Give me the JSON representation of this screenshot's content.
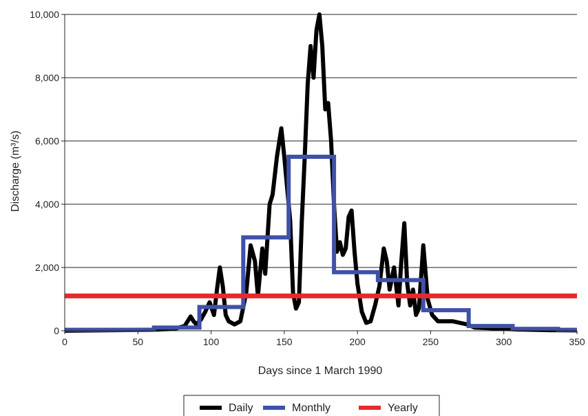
{
  "chart_data": {
    "type": "line",
    "title": "",
    "xlabel": "Days since 1 March 1990",
    "ylabel": "Discharge (m³/s)",
    "xlim": [
      0,
      350
    ],
    "ylim": [
      0,
      10000
    ],
    "x_ticks": [
      0,
      50,
      100,
      150,
      200,
      250,
      300,
      350
    ],
    "x_tick_labels": [
      "0",
      "50",
      "100",
      "150",
      "200",
      "250",
      "300",
      "350"
    ],
    "y_ticks": [
      0,
      2000,
      4000,
      6000,
      8000,
      10000
    ],
    "y_tick_labels": [
      "0",
      "2,000",
      "4,000",
      "6,000",
      "8,000",
      "10,000"
    ],
    "grid": "horizontal",
    "legend_position": "bottom",
    "series": [
      {
        "name": "Daily",
        "color": "#000000",
        "step": false,
        "x": [
          0,
          60,
          75,
          82,
          86,
          88,
          90,
          93,
          96,
          99,
          102,
          104,
          106,
          108,
          110,
          112,
          116,
          120,
          124,
          127,
          130,
          132,
          135,
          137,
          140,
          142,
          145,
          148,
          150,
          152,
          154,
          156,
          158,
          160,
          162,
          164,
          166,
          168,
          170,
          172,
          174,
          176,
          178,
          180,
          182,
          184,
          186,
          188,
          190,
          192,
          194,
          196,
          198,
          200,
          203,
          206,
          209,
          212,
          215,
          218,
          220,
          222,
          225,
          228,
          230,
          232,
          234,
          236,
          238,
          240,
          242,
          245,
          248,
          251,
          255,
          260,
          265,
          270,
          275,
          280,
          290,
          300,
          310,
          330,
          350
        ],
        "y": [
          0,
          30,
          60,
          150,
          450,
          300,
          200,
          350,
          600,
          900,
          500,
          1300,
          2000,
          1400,
          500,
          300,
          200,
          300,
          1200,
          2700,
          2200,
          1100,
          2600,
          1800,
          4000,
          4300,
          5500,
          6400,
          5500,
          4500,
          3500,
          1200,
          700,
          900,
          3500,
          5500,
          7800,
          9000,
          8000,
          9500,
          10000,
          9000,
          7000,
          7200,
          6000,
          4000,
          2500,
          2800,
          2400,
          2600,
          3600,
          3800,
          2500,
          1500,
          600,
          250,
          300,
          800,
          1400,
          2600,
          2200,
          1300,
          2000,
          800,
          2200,
          3400,
          1500,
          800,
          1300,
          500,
          700,
          2700,
          1000,
          500,
          300,
          300,
          300,
          250,
          200,
          100,
          80,
          60,
          40,
          20,
          10
        ]
      },
      {
        "name": "Monthly",
        "color": "#3f51a8",
        "step": true,
        "x": [
          0,
          61,
          61,
          92,
          92,
          122,
          122,
          153,
          153,
          184,
          184,
          214,
          214,
          245,
          245,
          276,
          276,
          306,
          306,
          337,
          337,
          350
        ],
        "y": [
          30,
          30,
          100,
          100,
          750,
          750,
          2950,
          2950,
          5500,
          5500,
          1850,
          1850,
          1600,
          1600,
          650,
          650,
          150,
          150,
          60,
          60,
          30,
          30
        ]
      },
      {
        "name": "Yearly",
        "color": "#e8292b",
        "step": false,
        "x": [
          0,
          350
        ],
        "y": [
          1100,
          1100
        ]
      }
    ]
  }
}
